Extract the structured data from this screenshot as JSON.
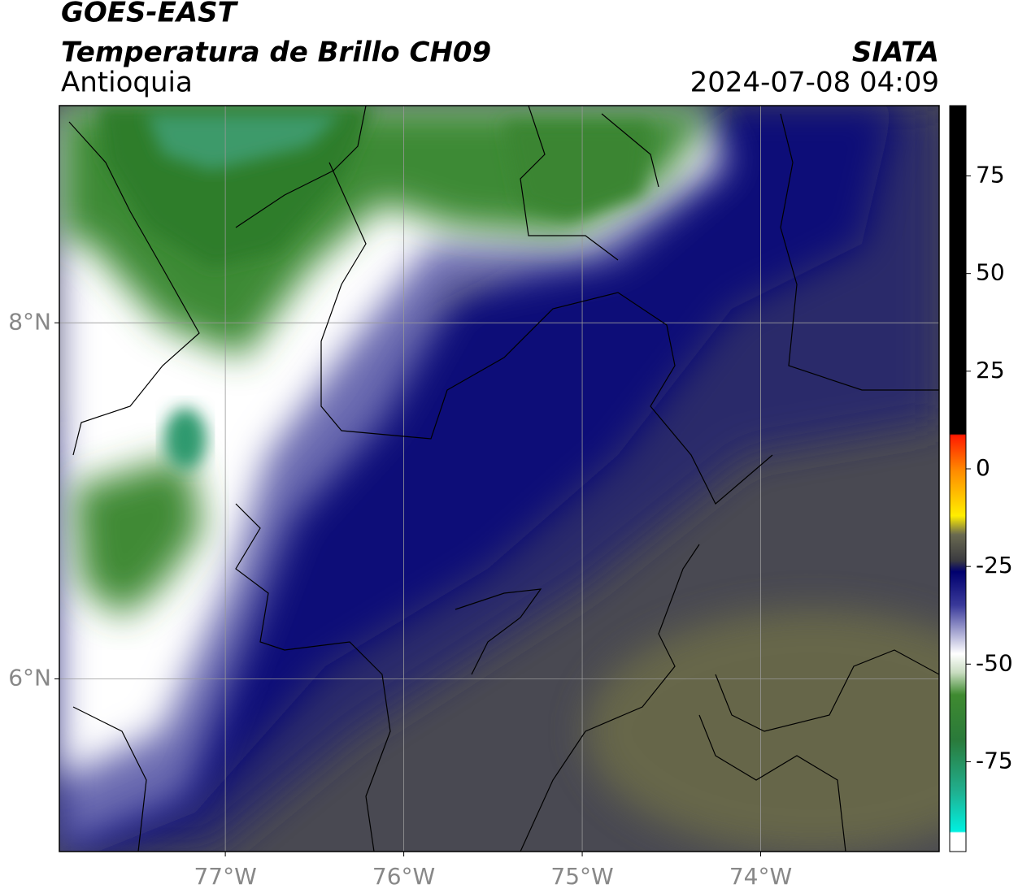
{
  "header": {
    "title": "GOES-EAST",
    "subtitle": "Temperatura de Brillo CH09",
    "region": "Antioquia",
    "source": "SIATA",
    "datetime": "2024-07-08 04:09"
  },
  "map": {
    "xlim": [
      -77.93,
      -73
    ],
    "ylim": [
      5.03,
      9.22
    ],
    "xticks": [
      {
        "value": -77,
        "label": "77°W"
      },
      {
        "value": -76,
        "label": "76°W"
      },
      {
        "value": -75,
        "label": "75°W"
      },
      {
        "value": -74,
        "label": "74°W"
      }
    ],
    "yticks": [
      {
        "value": 8,
        "label": "8°N"
      },
      {
        "value": 6,
        "label": "6°N"
      }
    ],
    "grid": true
  },
  "colorbar": {
    "lim": [
      -98,
      93
    ],
    "ticks": [
      75,
      50,
      25,
      0,
      -25,
      -50,
      -75
    ]
  }
}
